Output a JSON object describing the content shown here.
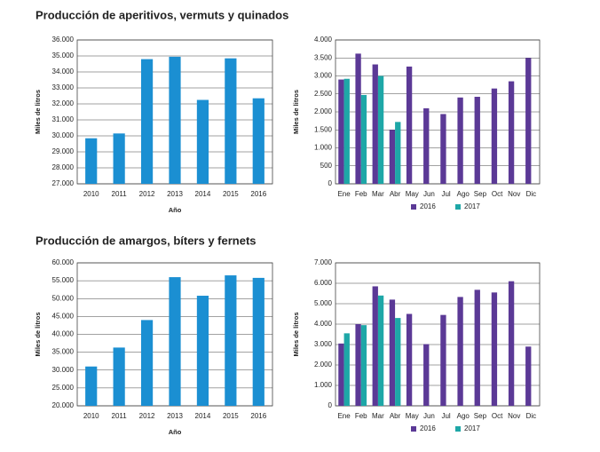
{
  "titles": [
    "Producción de aperitivos, vermuts y quinados",
    "Producción de amargos, bíters y fernets"
  ],
  "chart_data": [
    {
      "type": "bar",
      "ylabel": "Miles de litros",
      "xlabel": "Año",
      "categories": [
        "2010",
        "2011",
        "2012",
        "2013",
        "2014",
        "2015",
        "2016"
      ],
      "values": [
        29850,
        30150,
        34800,
        34950,
        32250,
        34850,
        32350
      ],
      "color": "#1b8fd2",
      "ylim": [
        27000,
        36000
      ],
      "yticks": [
        {
          "value": 27000,
          "label": "27.000"
        },
        {
          "value": 28000,
          "label": "28.000"
        },
        {
          "value": 29000,
          "label": "29.000"
        },
        {
          "value": 30000,
          "label": "30.000"
        },
        {
          "value": 31000,
          "label": "31.000"
        },
        {
          "value": 32000,
          "label": "32.000"
        },
        {
          "value": 33000,
          "label": "33.000"
        },
        {
          "value": 34000,
          "label": "34.000"
        },
        {
          "value": 35000,
          "label": "35.000"
        },
        {
          "value": 36000,
          "label": "36.000"
        }
      ],
      "grid": true
    },
    {
      "type": "bar",
      "ylabel": "Miles de litros",
      "categories": [
        "Ene",
        "Feb",
        "Mar",
        "Abr",
        "May",
        "Jun",
        "Jul",
        "Ago",
        "Sep",
        "Oct",
        "Nov",
        "Dic"
      ],
      "series": [
        {
          "name": "2016",
          "color": "#5b3996",
          "values": [
            2900,
            3620,
            3320,
            1500,
            3260,
            2100,
            1940,
            2400,
            2420,
            2650,
            2850,
            3500
          ]
        },
        {
          "name": "2017",
          "color": "#1ea7a7",
          "values": [
            2920,
            2470,
            3000,
            1720,
            null,
            null,
            null,
            null,
            null,
            null,
            null,
            null
          ]
        }
      ],
      "ylim": [
        0,
        4000
      ],
      "yticks": [
        0,
        500,
        {
          "value": 1000,
          "label": "1.000"
        },
        {
          "value": 1500,
          "label": "1.500"
        },
        {
          "value": 2000,
          "label": "2.000"
        },
        {
          "value": 2500,
          "label": "2.500"
        },
        {
          "value": 3000,
          "label": "3.000"
        },
        {
          "value": 3500,
          "label": "3.500"
        },
        {
          "value": 4000,
          "label": "4.000"
        }
      ],
      "grid": true
    },
    {
      "type": "bar",
      "ylabel": "Miles de litros",
      "xlabel": "Año",
      "categories": [
        "2010",
        "2011",
        "2012",
        "2013",
        "2014",
        "2015",
        "2016"
      ],
      "values": [
        31000,
        36300,
        44000,
        56000,
        50800,
        56500,
        55800
      ],
      "color": "#1b8fd2",
      "ylim": [
        20000,
        60000
      ],
      "yticks": [
        {
          "value": 20000,
          "label": "20.000"
        },
        {
          "value": 25000,
          "label": "25.000"
        },
        {
          "value": 30000,
          "label": "30.000"
        },
        {
          "value": 35000,
          "label": "35.000"
        },
        {
          "value": 40000,
          "label": "40.000"
        },
        {
          "value": 45000,
          "label": "45.000"
        },
        {
          "value": 50000,
          "label": "50.000"
        },
        {
          "value": 55000,
          "label": "55.000"
        },
        {
          "value": 60000,
          "label": "60.000"
        }
      ],
      "grid": true
    },
    {
      "type": "bar",
      "ylabel": "Miles de litros",
      "categories": [
        "Ene",
        "Feb",
        "Mar",
        "Abr",
        "May",
        "Jun",
        "Jul",
        "Ago",
        "Sep",
        "Oct",
        "Nov",
        "Dic"
      ],
      "series": [
        {
          "name": "2016",
          "color": "#5b3996",
          "values": [
            3050,
            4000,
            5850,
            5200,
            4500,
            3020,
            4450,
            5330,
            5680,
            5550,
            6100,
            2900
          ]
        },
        {
          "name": "2017",
          "color": "#1ea7a7",
          "values": [
            3550,
            3950,
            5400,
            4300,
            null,
            null,
            null,
            null,
            null,
            null,
            null,
            null
          ]
        }
      ],
      "ylim": [
        0,
        7000
      ],
      "yticks": [
        0,
        {
          "value": 1000,
          "label": "1.000"
        },
        {
          "value": 2000,
          "label": "2.000"
        },
        {
          "value": 3000,
          "label": "3.000"
        },
        {
          "value": 4000,
          "label": "4.000"
        },
        {
          "value": 5000,
          "label": "5.000"
        },
        {
          "value": 6000,
          "label": "6.000"
        },
        {
          "value": 7000,
          "label": "7.000"
        }
      ],
      "grid": true
    }
  ]
}
